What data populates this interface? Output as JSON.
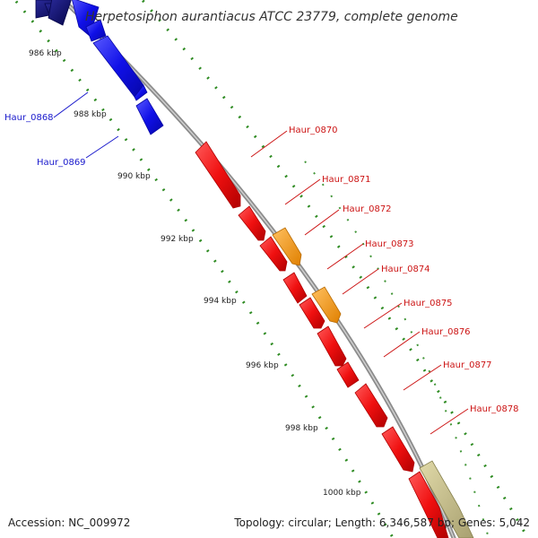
{
  "title": "Herpetosiphon aurantiacus ATCC 23779, complete genome",
  "footer": {
    "accession": "Accession: NC_009972",
    "topology": "Topology: circular; Length: 6,346,587 bp; Genes: 5,042"
  },
  "colors": {
    "background": "#ffffff",
    "backbone": "#8c8c8c",
    "tick": "#2e8b22",
    "blue_gene": "#1010e8",
    "blue_label": "#1a1acc",
    "dark_blue_gene": "#0a0a6e",
    "red_gene": "#f01010",
    "red_label": "#cc1414",
    "orange_gene": "#f59a14",
    "tan_gene": "#c8bf85"
  },
  "scale_labels": [
    "986 kbp",
    "988 kbp",
    "990 kbp",
    "992 kbp",
    "994 kbp",
    "996 kbp",
    "998 kbp",
    "1000 kbp"
  ],
  "gene_labels": [
    {
      "text": "Haur_0868",
      "color": "blue"
    },
    {
      "text": "Haur_0869",
      "color": "blue"
    },
    {
      "text": "Haur_0870",
      "color": "red"
    },
    {
      "text": "Haur_0871",
      "color": "red"
    },
    {
      "text": "Haur_0872",
      "color": "red"
    },
    {
      "text": "Haur_0873",
      "color": "red"
    },
    {
      "text": "Haur_0874",
      "color": "red"
    },
    {
      "text": "Haur_0875",
      "color": "red"
    },
    {
      "text": "Haur_0876",
      "color": "red"
    },
    {
      "text": "Haur_0877",
      "color": "red"
    },
    {
      "text": "Haur_0878",
      "color": "red"
    }
  ]
}
